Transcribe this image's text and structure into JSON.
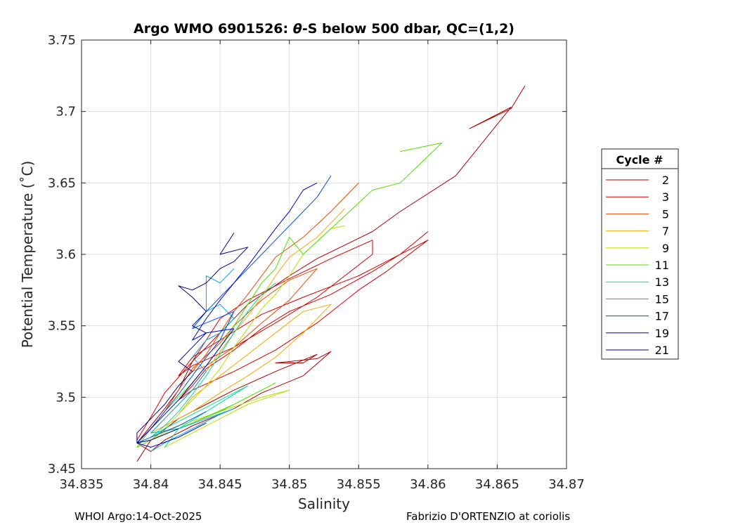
{
  "chart_data": {
    "type": "line",
    "title_part1": "Argo WMO 6901526: ",
    "title_theta": "θ",
    "title_part2": "-S below 500 dbar,  QC=(1,2)",
    "xlabel": "Salinity",
    "ylabel": "Potential Temperature (˚C)",
    "xlim": [
      34.835,
      34.87
    ],
    "ylim": [
      3.45,
      3.75
    ],
    "xticks": [
      {
        "value": 34.835,
        "label": "34.835"
      },
      {
        "value": 34.84,
        "label": "34.84"
      },
      {
        "value": 34.845,
        "label": "34.845"
      },
      {
        "value": 34.85,
        "label": "34.85"
      },
      {
        "value": 34.855,
        "label": "34.855"
      },
      {
        "value": 34.86,
        "label": "34.86"
      },
      {
        "value": 34.865,
        "label": "34.865"
      },
      {
        "value": 34.87,
        "label": "34.87"
      }
    ],
    "yticks": [
      {
        "value": 3.45,
        "label": "3.45"
      },
      {
        "value": 3.5,
        "label": "3.5"
      },
      {
        "value": 3.55,
        "label": "3.55"
      },
      {
        "value": 3.6,
        "label": "3.6"
      },
      {
        "value": 3.65,
        "label": "3.65"
      },
      {
        "value": 3.7,
        "label": "3.7"
      },
      {
        "value": 3.75,
        "label": "3.75"
      }
    ],
    "grid": true,
    "legend_title": "Cycle #",
    "legend_position": "right",
    "series": [
      {
        "name": "2",
        "color": "#b00000",
        "points": [
          [
            34.867,
            3.718
          ],
          [
            34.866,
            3.702
          ],
          [
            34.863,
            3.688
          ],
          [
            34.866,
            3.703
          ],
          [
            34.862,
            3.655
          ],
          [
            34.858,
            3.63
          ],
          [
            34.856,
            3.616
          ],
          [
            34.852,
            3.597
          ],
          [
            34.85,
            3.585
          ],
          [
            34.847,
            3.565
          ],
          [
            34.845,
            3.545
          ],
          [
            34.843,
            3.525
          ],
          [
            34.842,
            3.505
          ],
          [
            34.841,
            3.492
          ],
          [
            34.84,
            3.48
          ],
          [
            34.839,
            3.468
          ],
          [
            34.84,
            3.462
          ],
          [
            34.841,
            3.47
          ],
          [
            34.843,
            3.48
          ],
          [
            34.846,
            3.492
          ],
          [
            34.848,
            3.503
          ],
          [
            34.851,
            3.515
          ],
          [
            34.853,
            3.532
          ],
          [
            34.852,
            3.527
          ],
          [
            34.849,
            3.524
          ],
          [
            34.851,
            3.524
          ],
          [
            34.852,
            3.53
          ],
          [
            34.849,
            3.518
          ],
          [
            34.846,
            3.505
          ],
          [
            34.844,
            3.495
          ],
          [
            34.842,
            3.485
          ],
          [
            34.84,
            3.47
          ],
          [
            34.839,
            3.455
          ]
        ]
      },
      {
        "name": "3",
        "color": "#d40000",
        "points": [
          [
            34.86,
            3.616
          ],
          [
            34.858,
            3.6
          ],
          [
            34.856,
            3.588
          ],
          [
            34.853,
            3.572
          ],
          [
            34.85,
            3.56
          ],
          [
            34.848,
            3.548
          ],
          [
            34.846,
            3.533
          ],
          [
            34.844,
            3.52
          ],
          [
            34.843,
            3.508
          ],
          [
            34.842,
            3.498
          ],
          [
            34.843,
            3.505
          ],
          [
            34.846,
            3.518
          ],
          [
            34.849,
            3.533
          ],
          [
            34.852,
            3.552
          ],
          [
            34.855,
            3.575
          ],
          [
            34.857,
            3.588
          ],
          [
            34.86,
            3.61
          ],
          [
            34.857,
            3.595
          ],
          [
            34.855,
            3.585
          ],
          [
            34.851,
            3.57
          ],
          [
            34.848,
            3.558
          ],
          [
            34.845,
            3.54
          ],
          [
            34.843,
            3.528
          ],
          [
            34.842,
            3.515
          ],
          [
            34.843,
            3.522
          ],
          [
            34.846,
            3.535
          ],
          [
            34.849,
            3.552
          ],
          [
            34.852,
            3.57
          ],
          [
            34.854,
            3.585
          ],
          [
            34.856,
            3.6
          ],
          [
            34.856,
            3.61
          ],
          [
            34.853,
            3.597
          ],
          [
            34.85,
            3.583
          ],
          [
            34.847,
            3.568
          ],
          [
            34.845,
            3.555
          ],
          [
            34.844,
            3.54
          ],
          [
            34.843,
            3.525
          ],
          [
            34.841,
            3.503
          ],
          [
            34.84,
            3.486
          ],
          [
            34.839,
            3.47
          ]
        ]
      },
      {
        "name": "5",
        "color": "#e84a00",
        "points": [
          [
            34.855,
            3.65
          ],
          [
            34.853,
            3.63
          ],
          [
            34.851,
            3.612
          ],
          [
            34.849,
            3.598
          ],
          [
            34.848,
            3.585
          ],
          [
            34.847,
            3.572
          ],
          [
            34.846,
            3.56
          ],
          [
            34.845,
            3.545
          ],
          [
            34.844,
            3.53
          ],
          [
            34.843,
            3.518
          ],
          [
            34.844,
            3.522
          ],
          [
            34.846,
            3.535
          ],
          [
            34.848,
            3.552
          ],
          [
            34.85,
            3.568
          ],
          [
            34.852,
            3.59
          ],
          [
            34.85,
            3.582
          ],
          [
            34.848,
            3.568
          ],
          [
            34.846,
            3.55
          ],
          [
            34.845,
            3.538
          ],
          [
            34.843,
            3.52
          ],
          [
            34.842,
            3.505
          ],
          [
            34.841,
            3.49
          ],
          [
            34.84,
            3.478
          ]
        ]
      },
      {
        "name": "7",
        "color": "#f5a800",
        "points": [
          [
            34.854,
            3.632
          ],
          [
            34.853,
            3.622
          ],
          [
            34.852,
            3.612
          ],
          [
            34.85,
            3.598
          ],
          [
            34.849,
            3.585
          ],
          [
            34.848,
            3.57
          ],
          [
            34.847,
            3.557
          ],
          [
            34.846,
            3.545
          ],
          [
            34.845,
            3.532
          ],
          [
            34.844,
            3.518
          ],
          [
            34.843,
            3.505
          ],
          [
            34.842,
            3.495
          ],
          [
            34.841,
            3.485
          ],
          [
            34.84,
            3.475
          ],
          [
            34.841,
            3.48
          ],
          [
            34.843,
            3.49
          ],
          [
            34.845,
            3.503
          ],
          [
            34.847,
            3.515
          ],
          [
            34.849,
            3.528
          ],
          [
            34.851,
            3.545
          ],
          [
            34.853,
            3.565
          ],
          [
            34.851,
            3.56
          ],
          [
            34.849,
            3.545
          ],
          [
            34.847,
            3.53
          ],
          [
            34.845,
            3.515
          ],
          [
            34.843,
            3.5
          ],
          [
            34.842,
            3.488
          ]
        ]
      },
      {
        "name": "9",
        "color": "#b8e000",
        "points": [
          [
            34.854,
            3.62
          ],
          [
            34.853,
            3.618
          ],
          [
            34.851,
            3.6
          ],
          [
            34.85,
            3.585
          ],
          [
            34.849,
            3.572
          ],
          [
            34.848,
            3.562
          ],
          [
            34.847,
            3.548
          ],
          [
            34.846,
            3.535
          ],
          [
            34.845,
            3.52
          ],
          [
            34.844,
            3.508
          ],
          [
            34.843,
            3.498
          ],
          [
            34.842,
            3.488
          ],
          [
            34.841,
            3.478
          ],
          [
            34.84,
            3.47
          ],
          [
            34.842,
            3.48
          ],
          [
            34.845,
            3.49
          ],
          [
            34.848,
            3.5
          ],
          [
            34.85,
            3.505
          ],
          [
            34.847,
            3.495
          ],
          [
            34.845,
            3.485
          ],
          [
            34.843,
            3.475
          ],
          [
            34.841,
            3.465
          ]
        ]
      },
      {
        "name": "11",
        "color": "#50e000",
        "points": [
          [
            34.861,
            3.678
          ],
          [
            34.858,
            3.672
          ],
          [
            34.861,
            3.678
          ],
          [
            34.858,
            3.65
          ],
          [
            34.856,
            3.645
          ],
          [
            34.853,
            3.618
          ],
          [
            34.851,
            3.6
          ],
          [
            34.85,
            3.612
          ],
          [
            34.849,
            3.59
          ],
          [
            34.848,
            3.58
          ],
          [
            34.847,
            3.565
          ],
          [
            34.846,
            3.55
          ],
          [
            34.845,
            3.535
          ],
          [
            34.844,
            3.522
          ],
          [
            34.843,
            3.51
          ],
          [
            34.842,
            3.5
          ],
          [
            34.841,
            3.49
          ],
          [
            34.84,
            3.478
          ],
          [
            34.839,
            3.465
          ],
          [
            34.84,
            3.47
          ],
          [
            34.843,
            3.482
          ],
          [
            34.846,
            3.495
          ],
          [
            34.849,
            3.51
          ],
          [
            34.848,
            3.505
          ],
          [
            34.845,
            3.49
          ],
          [
            34.842,
            3.478
          ]
        ]
      },
      {
        "name": "13",
        "color": "#00e0a0",
        "points": [
          [
            34.849,
            3.58
          ],
          [
            34.848,
            3.572
          ],
          [
            34.847,
            3.56
          ],
          [
            34.846,
            3.545
          ],
          [
            34.845,
            3.53
          ],
          [
            34.844,
            3.515
          ],
          [
            34.843,
            3.502
          ],
          [
            34.842,
            3.49
          ],
          [
            34.841,
            3.48
          ],
          [
            34.84,
            3.472
          ],
          [
            34.841,
            3.478
          ],
          [
            34.843,
            3.488
          ],
          [
            34.845,
            3.498
          ],
          [
            34.847,
            3.508
          ],
          [
            34.846,
            3.502
          ],
          [
            34.844,
            3.49
          ],
          [
            34.842,
            3.478
          ],
          [
            34.841,
            3.465
          ]
        ]
      },
      {
        "name": "15",
        "color": "#00a8e0",
        "points": [
          [
            34.846,
            3.59
          ],
          [
            34.845,
            3.58
          ],
          [
            34.844,
            3.585
          ],
          [
            34.844,
            3.56
          ],
          [
            34.845,
            3.565
          ],
          [
            34.846,
            3.555
          ],
          [
            34.845,
            3.545
          ],
          [
            34.844,
            3.54
          ],
          [
            34.843,
            3.528
          ],
          [
            34.844,
            3.518
          ],
          [
            34.843,
            3.505
          ],
          [
            34.842,
            3.495
          ],
          [
            34.841,
            3.485
          ],
          [
            34.84,
            3.475
          ],
          [
            34.842,
            3.478
          ],
          [
            34.844,
            3.485
          ],
          [
            34.846,
            3.492
          ],
          [
            34.845,
            3.488
          ],
          [
            34.843,
            3.478
          ],
          [
            34.841,
            3.468
          ],
          [
            34.84,
            3.462
          ]
        ]
      },
      {
        "name": "17",
        "color": "#0050e8",
        "points": [
          [
            34.853,
            3.655
          ],
          [
            34.852,
            3.64
          ],
          [
            34.851,
            3.63
          ],
          [
            34.85,
            3.62
          ],
          [
            34.849,
            3.61
          ],
          [
            34.848,
            3.6
          ],
          [
            34.847,
            3.59
          ],
          [
            34.846,
            3.58
          ],
          [
            34.845,
            3.57
          ],
          [
            34.844,
            3.56
          ],
          [
            34.843,
            3.548
          ],
          [
            34.844,
            3.552
          ],
          [
            34.846,
            3.56
          ],
          [
            34.845,
            3.54
          ],
          [
            34.844,
            3.528
          ],
          [
            34.843,
            3.515
          ],
          [
            34.842,
            3.502
          ],
          [
            34.841,
            3.49
          ],
          [
            34.84,
            3.478
          ],
          [
            34.839,
            3.468
          ],
          [
            34.84,
            3.472
          ],
          [
            34.842,
            3.48
          ],
          [
            34.844,
            3.49
          ]
        ]
      },
      {
        "name": "19",
        "color": "#0000c8",
        "points": [
          [
            34.852,
            3.65
          ],
          [
            34.851,
            3.645
          ],
          [
            34.85,
            3.63
          ],
          [
            34.849,
            3.618
          ],
          [
            34.848,
            3.605
          ],
          [
            34.847,
            3.592
          ],
          [
            34.846,
            3.58
          ],
          [
            34.845,
            3.568
          ],
          [
            34.844,
            3.555
          ],
          [
            34.843,
            3.54
          ],
          [
            34.844,
            3.545
          ],
          [
            34.846,
            3.548
          ],
          [
            34.845,
            3.535
          ],
          [
            34.844,
            3.522
          ],
          [
            34.843,
            3.51
          ],
          [
            34.842,
            3.498
          ],
          [
            34.841,
            3.488
          ],
          [
            34.84,
            3.478
          ],
          [
            34.839,
            3.468
          ],
          [
            34.84,
            3.465
          ],
          [
            34.842,
            3.472
          ],
          [
            34.844,
            3.482
          ]
        ]
      },
      {
        "name": "21",
        "color": "#000080",
        "points": [
          [
            34.846,
            3.615
          ],
          [
            34.845,
            3.6
          ],
          [
            34.847,
            3.605
          ],
          [
            34.846,
            3.595
          ],
          [
            34.845,
            3.59
          ],
          [
            34.844,
            3.58
          ],
          [
            34.843,
            3.575
          ],
          [
            34.842,
            3.578
          ],
          [
            34.843,
            3.57
          ],
          [
            34.844,
            3.56
          ],
          [
            34.843,
            3.55
          ],
          [
            34.844,
            3.545
          ],
          [
            34.843,
            3.535
          ],
          [
            34.842,
            3.525
          ],
          [
            34.843,
            3.518
          ],
          [
            34.842,
            3.508
          ],
          [
            34.841,
            3.495
          ],
          [
            34.84,
            3.485
          ],
          [
            34.839,
            3.475
          ],
          [
            34.839,
            3.468
          ],
          [
            34.84,
            3.47
          ],
          [
            34.842,
            3.478
          ]
        ]
      }
    ]
  },
  "footer": {
    "left": "WHOI Argo:14-Oct-2025",
    "right": "Fabrizio D'ORTENZIO at coriolis"
  }
}
